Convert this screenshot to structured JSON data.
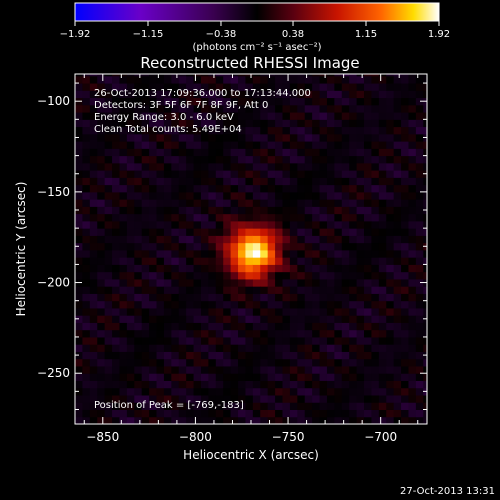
{
  "chart_data": {
    "type": "heatmap",
    "title": "Reconstructed RHESSI Image",
    "xlabel": "Heliocentric X (arcsec)",
    "ylabel": "Heliocentric Y (arcsec)",
    "xlim": [
      -865,
      -675
    ],
    "ylim": [
      -278,
      -85
    ],
    "x_ticks": [
      {
        "value": -850,
        "label": "−850"
      },
      {
        "value": -800,
        "label": "−800"
      },
      {
        "value": -750,
        "label": "−750"
      },
      {
        "value": -700,
        "label": "−700"
      }
    ],
    "y_ticks": [
      {
        "value": -100,
        "label": "−100"
      },
      {
        "value": -150,
        "label": "−150"
      },
      {
        "value": -200,
        "label": "−200"
      },
      {
        "value": -250,
        "label": "−250"
      }
    ],
    "colorbar": {
      "min": -1.92,
      "max": 1.92,
      "ticks": [
        {
          "value": -1.92,
          "label": "−1.92"
        },
        {
          "value": -1.15,
          "label": "−1.15"
        },
        {
          "value": -0.38,
          "label": "−0.38"
        },
        {
          "value": 0.38,
          "label": "0.38"
        },
        {
          "value": 1.15,
          "label": "1.15"
        },
        {
          "value": 1.92,
          "label": "1.92"
        }
      ],
      "units_label": "(photons cm⁻² s⁻¹ asec⁻²)",
      "colors": [
        "#0000ff",
        "#6a00c8",
        "#3a0050",
        "#000000",
        "#5a0010",
        "#c81400",
        "#ff6400",
        "#ffdc00",
        "#ffffff"
      ]
    },
    "peak": {
      "x": -769,
      "y": -183,
      "value": 1.92
    },
    "source_sigma_arcsec": 10
  },
  "annotations": {
    "time": "26-Oct-2013 17:09:36.000  to  17:13:44.000",
    "detectors": "Detectors: 3F 5F 6F 7F 8F 9F, Att 0",
    "energy": "Energy Range: 3.0 - 6.0 keV",
    "clean": "Clean    Total counts: 5.49E+04",
    "peak_label": "Position of Peak = [-769,-183]"
  },
  "footer_date": "27-Oct-2013 13:31"
}
